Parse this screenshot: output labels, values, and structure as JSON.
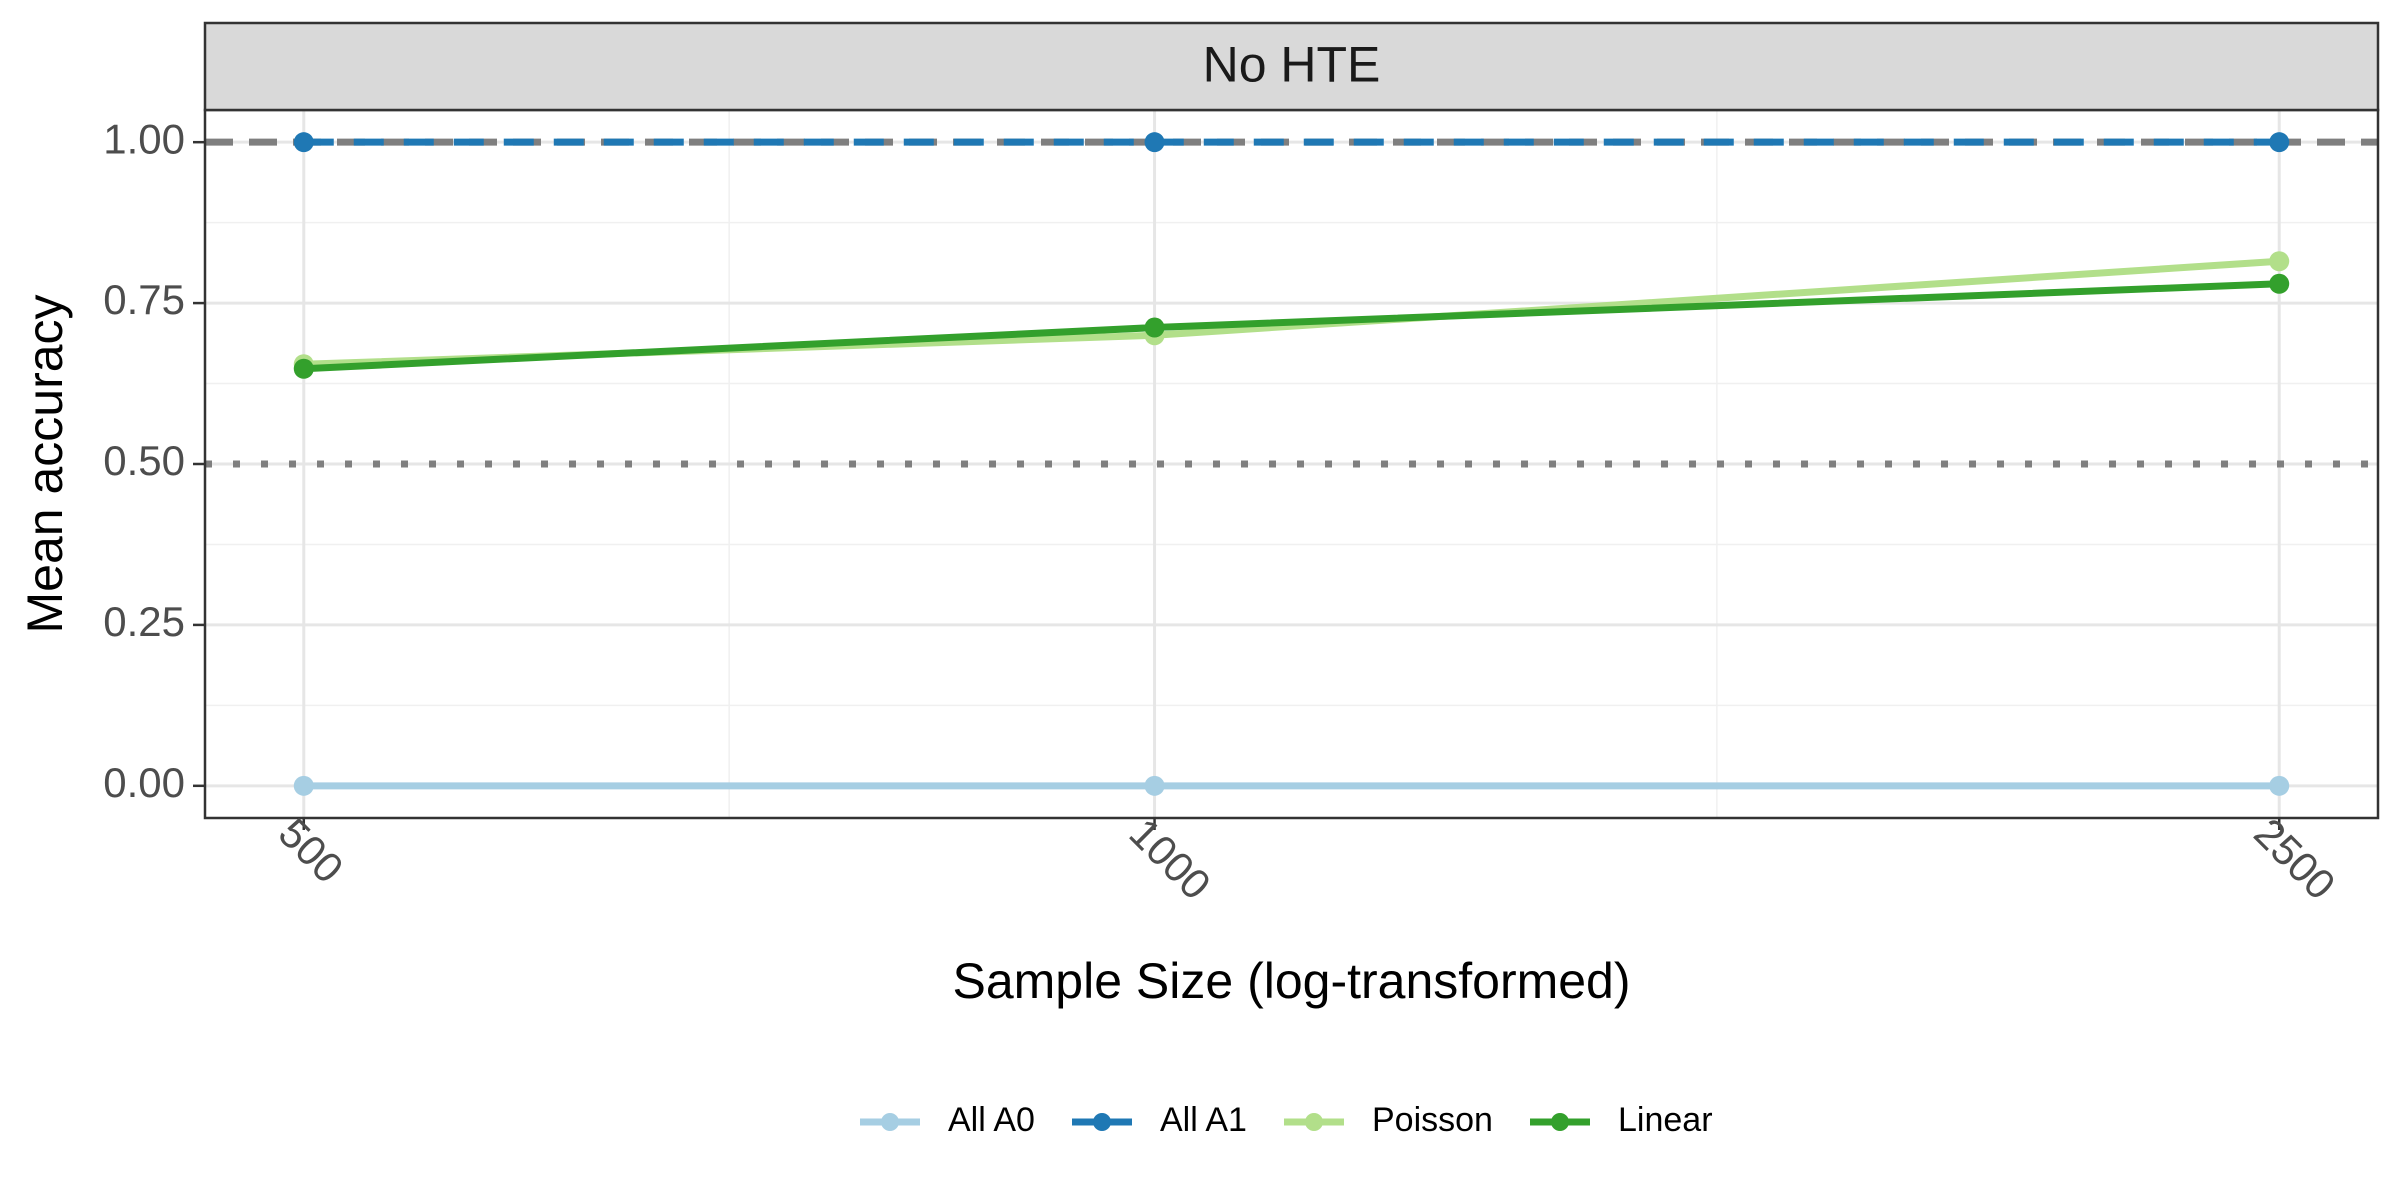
{
  "chart_data": {
    "type": "line",
    "panel_title": "No HTE",
    "xlabel": "Sample Size (log-transformed)",
    "ylabel": "Mean accuracy",
    "x": [
      500,
      1000,
      2500
    ],
    "x_tick_labels": [
      "500",
      "1000",
      "2500"
    ],
    "x_scale": "log",
    "ylim": [
      -0.05,
      1.05
    ],
    "y_ticks": [
      0,
      0.25,
      0.5,
      0.75,
      1.0
    ],
    "y_tick_labels": [
      "0.00",
      "0.25",
      "0.50",
      "0.75",
      "1.00"
    ],
    "grid": true,
    "legend_position": "bottom",
    "reference_lines": [
      {
        "y": 1.0,
        "style": "dashed",
        "color": "#7f7f7f"
      },
      {
        "y": 0.5,
        "style": "dotted",
        "color": "#7f7f7f"
      }
    ],
    "series": [
      {
        "name": "All A0",
        "color": "#a6cee3",
        "values": [
          0.0,
          0.0,
          0.0
        ]
      },
      {
        "name": "All A1",
        "color": "#1f78b4",
        "values": [
          1.0,
          1.0,
          1.0
        ]
      },
      {
        "name": "Poisson",
        "color": "#b2df8a",
        "values": [
          0.655,
          0.7,
          0.815
        ]
      },
      {
        "name": "Linear",
        "color": "#33a02c",
        "values": [
          0.648,
          0.712,
          0.78
        ]
      }
    ]
  }
}
